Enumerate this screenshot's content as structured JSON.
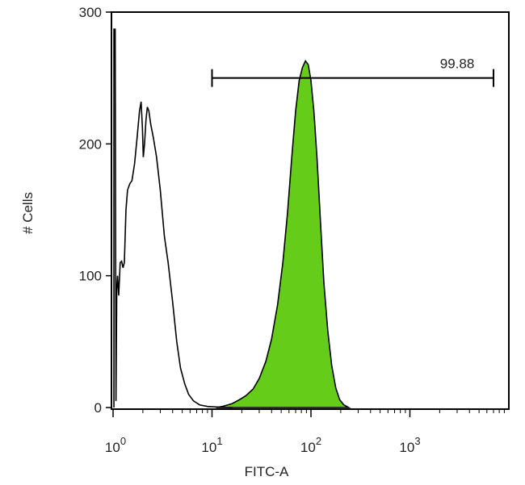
{
  "chart_data": {
    "type": "area",
    "xlabel": "FITC-A",
    "ylabel": "# Cells",
    "xscale": "log",
    "xlim": [
      1,
      10000
    ],
    "ylim": [
      0,
      300
    ],
    "grid": false,
    "x_ticks": [
      {
        "value": 1,
        "base": "10",
        "exp": "0"
      },
      {
        "value": 10,
        "base": "10",
        "exp": "1"
      },
      {
        "value": 100,
        "base": "10",
        "exp": "2"
      },
      {
        "value": 1000,
        "base": "10",
        "exp": "3"
      }
    ],
    "y_ticks": [
      {
        "value": 0,
        "label": "0"
      },
      {
        "value": 100,
        "label": "100"
      },
      {
        "value": 200,
        "label": "200"
      },
      {
        "value": 300,
        "label": "300"
      }
    ],
    "gate": {
      "label": "99.88",
      "x_start": 10,
      "x_end": 7000,
      "y": 250
    },
    "series": [
      {
        "style": "outline",
        "color": "#000000",
        "points": [
          [
            1.02,
            0
          ],
          [
            1.02,
            287
          ],
          [
            1.05,
            287
          ],
          [
            1.07,
            5
          ],
          [
            1.09,
            90
          ],
          [
            1.11,
            100
          ],
          [
            1.14,
            85
          ],
          [
            1.18,
            110
          ],
          [
            1.22,
            111
          ],
          [
            1.26,
            106
          ],
          [
            1.3,
            110
          ],
          [
            1.35,
            150
          ],
          [
            1.4,
            165
          ],
          [
            1.48,
            170
          ],
          [
            1.55,
            172
          ],
          [
            1.65,
            185
          ],
          [
            1.75,
            205
          ],
          [
            1.85,
            225
          ],
          [
            1.92,
            232
          ],
          [
            1.98,
            212
          ],
          [
            2.02,
            190
          ],
          [
            2.08,
            200
          ],
          [
            2.15,
            218
          ],
          [
            2.22,
            228
          ],
          [
            2.3,
            225
          ],
          [
            2.4,
            215
          ],
          [
            2.55,
            205
          ],
          [
            2.75,
            190
          ],
          [
            3.0,
            165
          ],
          [
            3.3,
            130
          ],
          [
            3.6,
            110
          ],
          [
            4.0,
            80
          ],
          [
            4.4,
            50
          ],
          [
            4.8,
            30
          ],
          [
            5.3,
            18
          ],
          [
            5.8,
            10
          ],
          [
            6.5,
            5
          ],
          [
            7.5,
            2
          ],
          [
            9.0,
            0.8
          ],
          [
            12.0,
            0.3
          ],
          [
            16.0,
            0
          ]
        ]
      },
      {
        "style": "filled",
        "color": "#66cc1a",
        "stroke": "#000000",
        "points": [
          [
            11,
            0
          ],
          [
            13,
            1
          ],
          [
            16,
            3
          ],
          [
            19,
            6
          ],
          [
            22,
            9
          ],
          [
            26,
            14
          ],
          [
            30,
            22
          ],
          [
            35,
            35
          ],
          [
            40,
            52
          ],
          [
            46,
            78
          ],
          [
            52,
            110
          ],
          [
            58,
            148
          ],
          [
            64,
            190
          ],
          [
            70,
            225
          ],
          [
            76,
            248
          ],
          [
            82,
            258
          ],
          [
            88,
            263
          ],
          [
            94,
            260
          ],
          [
            100,
            248
          ],
          [
            107,
            225
          ],
          [
            115,
            190
          ],
          [
            125,
            140
          ],
          [
            135,
            95
          ],
          [
            148,
            58
          ],
          [
            162,
            32
          ],
          [
            178,
            15
          ],
          [
            195,
            6
          ],
          [
            215,
            2
          ],
          [
            240,
            0
          ]
        ]
      }
    ]
  }
}
